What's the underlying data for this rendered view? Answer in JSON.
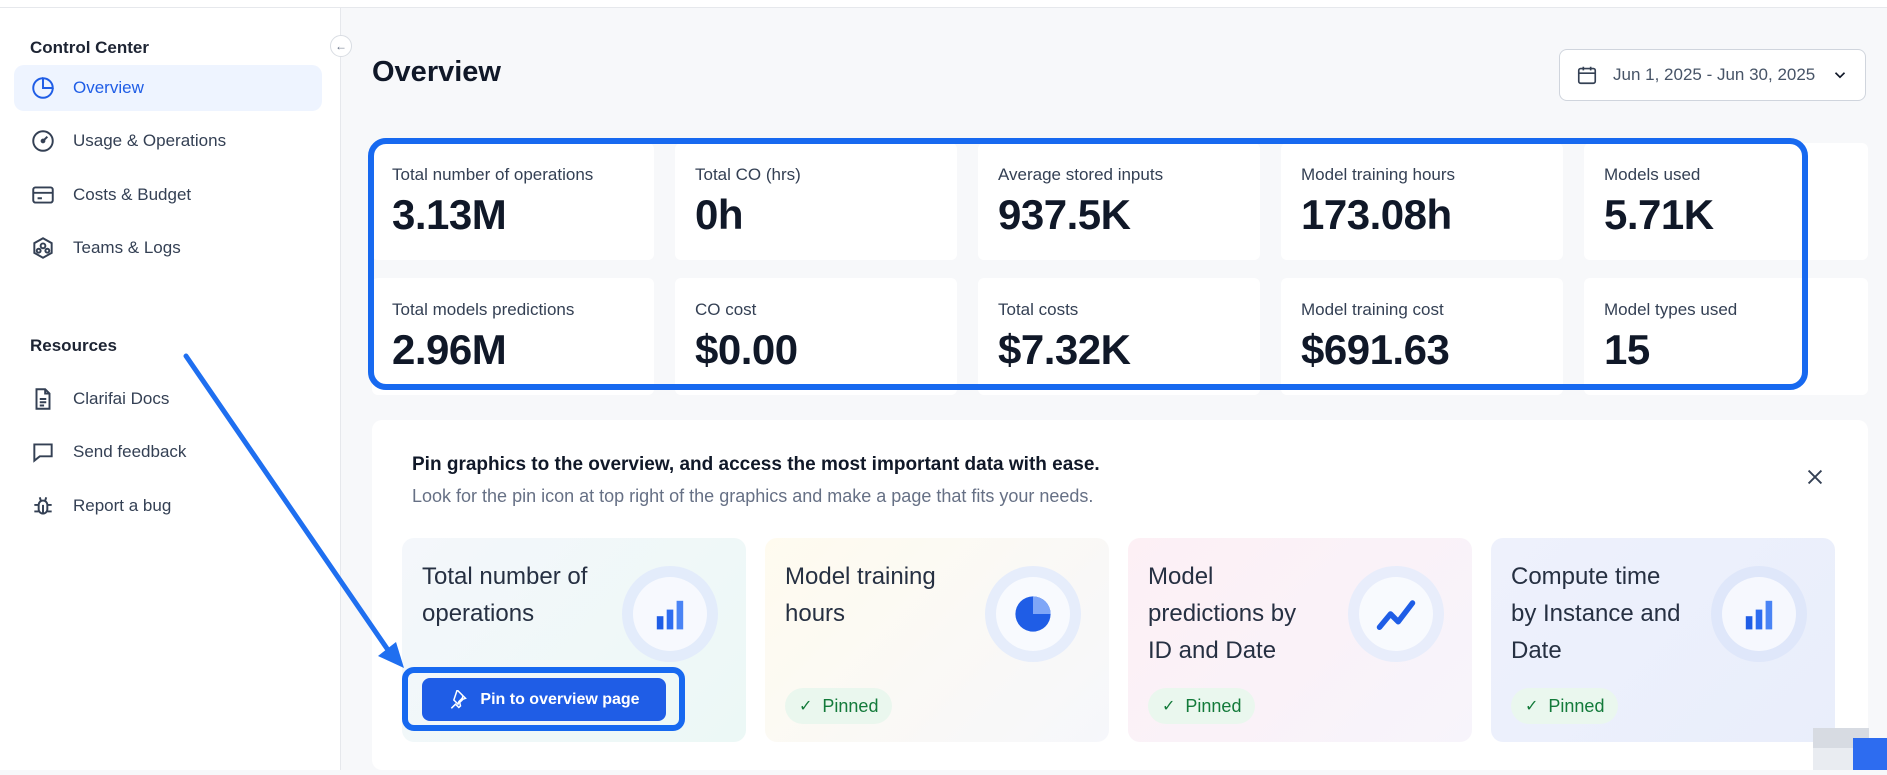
{
  "sidebar": {
    "control_center_title": "Control Center",
    "items": [
      {
        "label": "Overview",
        "icon": "pie-chart-icon",
        "active": true
      },
      {
        "label": "Usage & Operations",
        "icon": "gauge-icon"
      },
      {
        "label": "Costs & Budget",
        "icon": "credit-card-icon"
      },
      {
        "label": "Teams & Logs",
        "icon": "team-icon"
      }
    ],
    "resources_title": "Resources",
    "resources": [
      {
        "label": "Clarifai Docs",
        "icon": "document-icon"
      },
      {
        "label": "Send feedback",
        "icon": "chat-bubble-icon"
      },
      {
        "label": "Report a bug",
        "icon": "bug-icon"
      }
    ]
  },
  "header": {
    "title": "Overview",
    "date_range": "Jun 1, 2025 - Jun 30, 2025"
  },
  "stats": [
    {
      "label": "Total number of operations",
      "value": "3.13M"
    },
    {
      "label": "Total CO (hrs)",
      "value": "0h"
    },
    {
      "label": "Average stored inputs",
      "value": "937.5K"
    },
    {
      "label": "Model training hours",
      "value": "173.08h"
    },
    {
      "label": "Models used",
      "value": "5.71K"
    },
    {
      "label": "Total models predictions",
      "value": "2.96M"
    },
    {
      "label": "CO cost",
      "value": "$0.00"
    },
    {
      "label": "Total costs",
      "value": "$7.32K"
    },
    {
      "label": "Model training cost",
      "value": "$691.63"
    },
    {
      "label": "Model types used",
      "value": "15"
    }
  ],
  "pin_panel": {
    "heading": "Pin graphics to the overview, and access the most important data with ease.",
    "subtext": "Look for the pin icon at top right of the graphics and make a page that fits your needs.",
    "cards": [
      {
        "title": "Total number of operations",
        "icon": "bar-chart-icon",
        "action": "Pin to overview page"
      },
      {
        "title": "Model training hours",
        "icon": "pie-chart-icon",
        "status": "Pinned"
      },
      {
        "title": "Model predictions by ID and Date",
        "icon": "line-chart-icon",
        "status": "Pinned"
      },
      {
        "title": "Compute time by Instance and Date",
        "icon": "bar-chart-icon",
        "status": "Pinned"
      }
    ]
  },
  "colors": {
    "accent": "#1f5de6",
    "highlight": "#1769f0",
    "pinned_bg": "#eaf7ee",
    "pinned_text": "#137a3a"
  }
}
